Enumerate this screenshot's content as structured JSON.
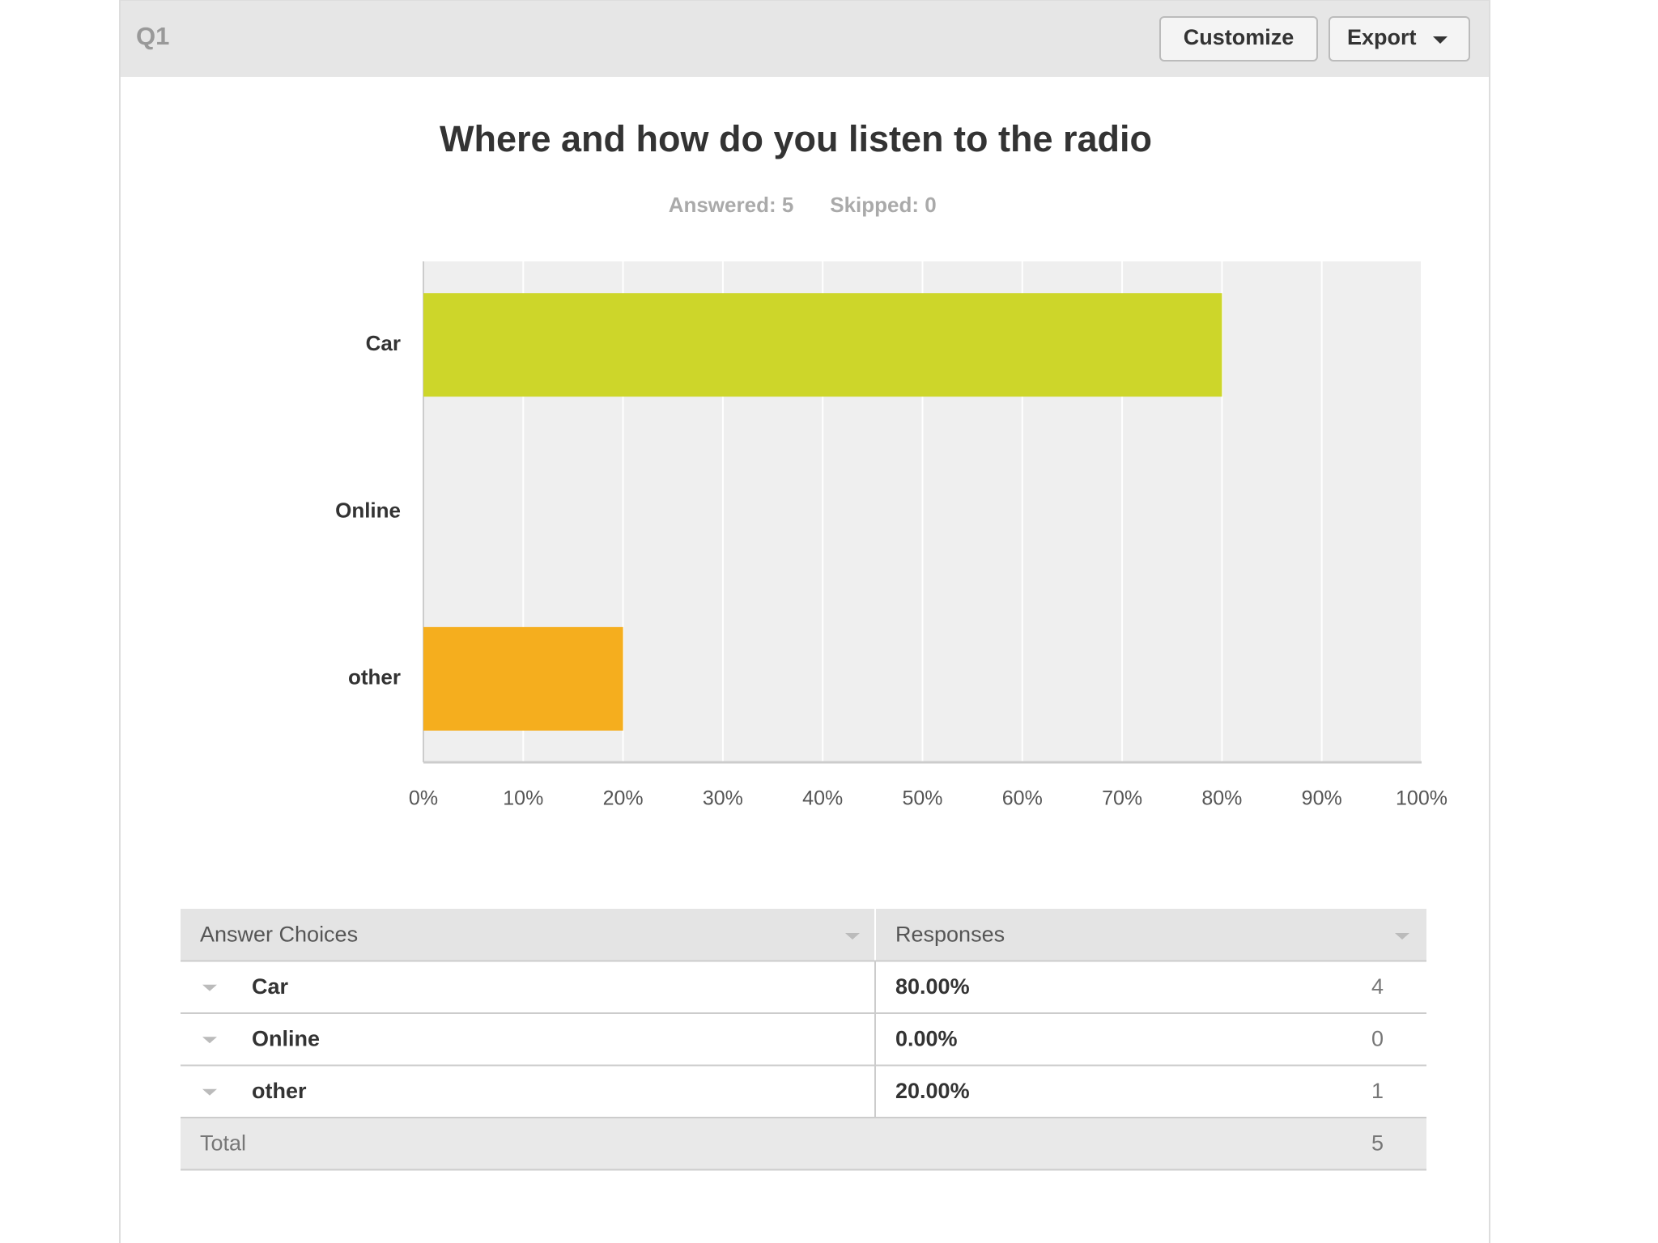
{
  "header": {
    "label": "Q1",
    "buttons": [
      "Customize",
      "Export"
    ]
  },
  "chart_data": {
    "type": "bar",
    "orientation": "horizontal",
    "title": "Where and how do you listen to the radio",
    "answered": "Answered: 5",
    "skipped": "Skipped: 0",
    "categories": [
      "Car",
      "Online",
      "other"
    ],
    "values": [
      80,
      0,
      20
    ],
    "colors": [
      "#cdd62a",
      null,
      "#f5ae1e"
    ],
    "xlim": [
      0,
      100
    ],
    "xticks": [
      {
        "value": 0,
        "label": "0%"
      },
      {
        "value": 10,
        "label": "10%"
      },
      {
        "value": 20,
        "label": "20%"
      },
      {
        "value": 30,
        "label": "30%"
      },
      {
        "value": 40,
        "label": "40%"
      },
      {
        "value": 50,
        "label": "50%"
      },
      {
        "value": 60,
        "label": "60%"
      },
      {
        "value": 70,
        "label": "70%"
      },
      {
        "value": 80,
        "label": "80%"
      },
      {
        "value": 90,
        "label": "90%"
      },
      {
        "value": 100,
        "label": "100%"
      }
    ],
    "grid": true
  },
  "table": {
    "columns": [
      "Answer Choices",
      "Responses"
    ],
    "rows": [
      [
        "Car",
        "80.00%",
        4
      ],
      [
        "Online",
        "0.00%",
        0
      ],
      [
        "other",
        "20.00%",
        1
      ]
    ],
    "total": [
      "Total",
      5
    ]
  }
}
